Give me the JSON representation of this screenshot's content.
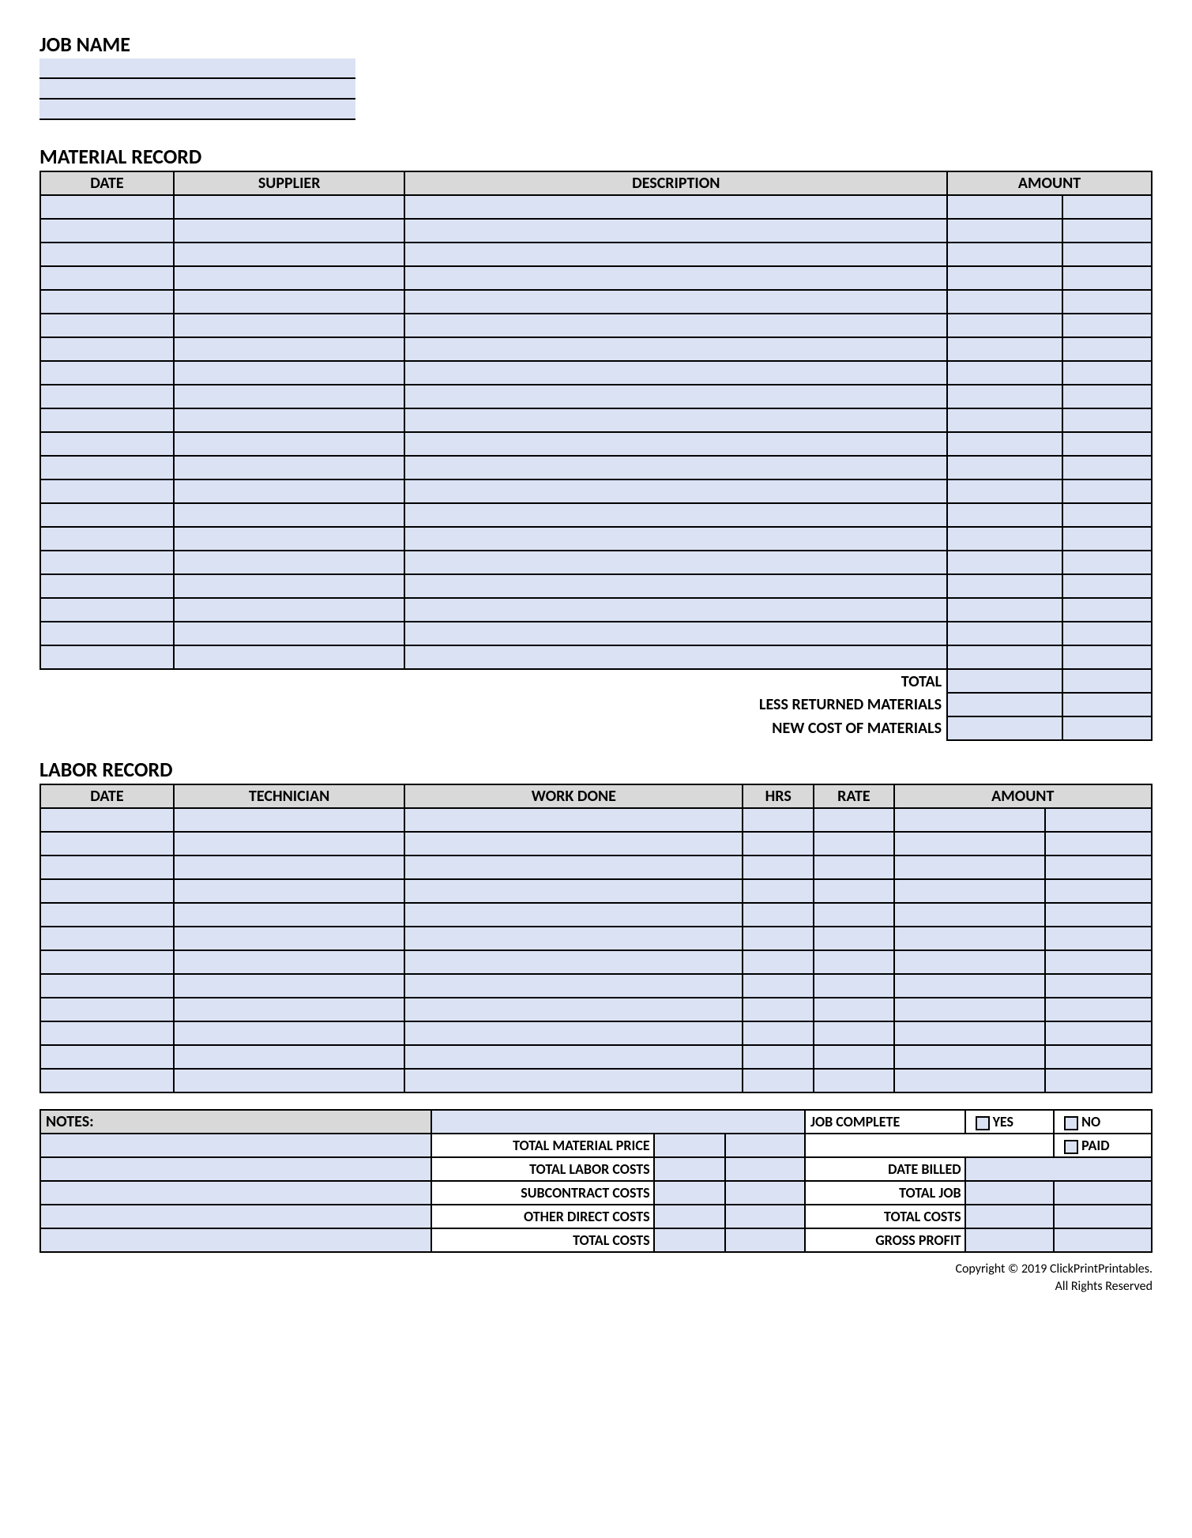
{
  "jobName": {
    "title": "JOB NAME"
  },
  "material": {
    "title": "MATERIAL RECORD",
    "headers": {
      "date": "DATE",
      "supplier": "SUPPLIER",
      "description": "DESCRIPTION",
      "amount": "AMOUNT"
    },
    "rowCount": 20,
    "colWidths": {
      "date": 150,
      "supplier": 260,
      "description": 610,
      "amount_a": 130,
      "amount_b": 100
    },
    "summary": {
      "total": "TOTAL",
      "lessReturned": "LESS RETURNED MATERIALS",
      "newCost": "NEW COST OF MATERIALS"
    }
  },
  "labor": {
    "title": "LABOR RECORD",
    "headers": {
      "date": "DATE",
      "technician": "TECHNICIAN",
      "workDone": "WORK DONE",
      "hrs": "HRS",
      "rate": "RATE",
      "amount": "AMOUNT"
    },
    "rowCount": 12,
    "colWidths": {
      "date": 150,
      "technician": 260,
      "workDone": 380,
      "hrs": 80,
      "rate": 90,
      "amount_a": 170,
      "amount_b": 120
    }
  },
  "bottom": {
    "notes": "NOTES:",
    "totalMaterialPrice": "TOTAL MATERIAL PRICE",
    "totalLaborCosts": "TOTAL LABOR COSTS",
    "subcontractCosts": "SUBCONTRACT COSTS",
    "otherDirectCosts": "OTHER DIRECT COSTS",
    "totalCosts": "TOTAL COSTS",
    "jobComplete": "JOB COMPLETE",
    "yes": "YES",
    "no": "NO",
    "paid": "PAID",
    "dateBilled": "DATE BILLED",
    "totalJob": "TOTAL JOB",
    "totalCostsRight": "TOTAL COSTS",
    "grossProfit": "GROSS PROFIT"
  },
  "footer": {
    "copyright": "Copyright © 2019 ClickPrintPrintables.",
    "rights": "All Rights Reserved"
  },
  "colors": {
    "fill": "#dbe2f4",
    "header": "#d9d9d9",
    "border": "#000000",
    "background": "#ffffff"
  }
}
